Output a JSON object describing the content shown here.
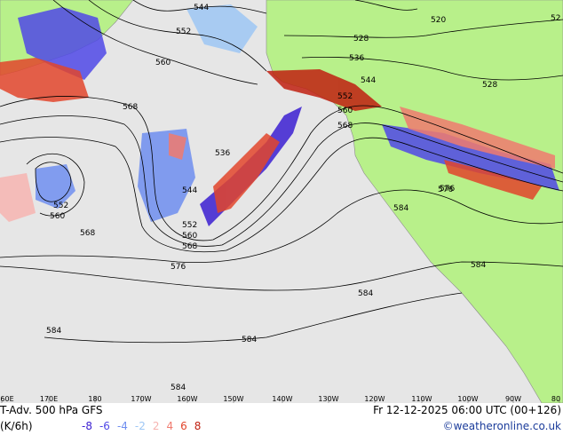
{
  "title": "T-Adv. 500 hPa GFS",
  "valid_time": "Fr 12-12-2025 06:00 UTC (00+126)",
  "unit": "(K/6h)",
  "credit": "©weatheronline.co.uk",
  "legend": {
    "values": [
      {
        "label": "-8",
        "color": "#3b1fd1"
      },
      {
        "label": "-6",
        "color": "#4f48e6"
      },
      {
        "label": "-4",
        "color": "#6f8ef0"
      },
      {
        "label": "-2",
        "color": "#9ec7f5"
      },
      {
        "label": "2",
        "color": "#f6b4b0"
      },
      {
        "label": "4",
        "color": "#f07b6f"
      },
      {
        "label": "6",
        "color": "#e2452b"
      },
      {
        "label": "8",
        "color": "#c02010"
      }
    ]
  },
  "longitudes": [
    "60E",
    "170E",
    "180",
    "170W",
    "160W",
    "150W",
    "140W",
    "130W",
    "120W",
    "110W",
    "100W",
    "90W",
    "80"
  ],
  "contour_labels": [
    "544",
    "552",
    "560",
    "568",
    "520",
    "528",
    "536",
    "544",
    "552",
    "560",
    "568",
    "576",
    "584",
    "528",
    "536",
    "544",
    "552",
    "560",
    "568",
    "552",
    "560",
    "568",
    "576",
    "584",
    "584",
    "584",
    "584",
    "584",
    "576",
    "52"
  ],
  "colors": {
    "ocean": "#e6e6e6",
    "land": "#b8f08a",
    "contour": "#000000",
    "cold": "#4f48e6",
    "warm": "#e2452b"
  }
}
